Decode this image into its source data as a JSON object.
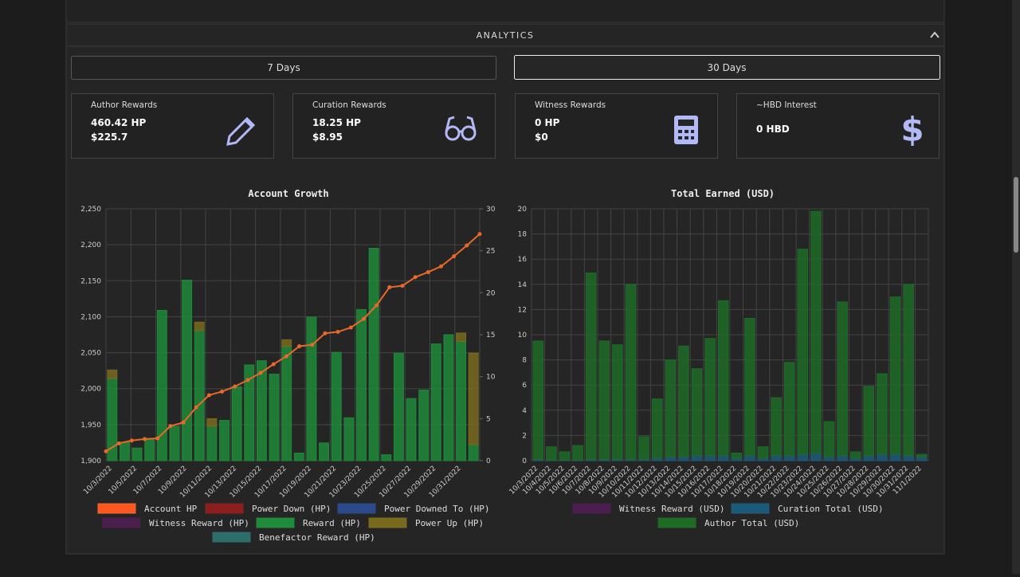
{
  "header": {
    "title": "ANALYTICS"
  },
  "tabs": [
    "7 Days",
    "30 Days"
  ],
  "cards": [
    {
      "label": "Author Rewards",
      "lines": [
        "460.42 HP",
        "$225.7"
      ]
    },
    {
      "label": "Curation Rewards",
      "lines": [
        "18.25 HP",
        "$8.95"
      ]
    },
    {
      "label": "Witness Rewards",
      "lines": [
        "0 HP",
        "$0"
      ]
    },
    {
      "label": "~HBD Interest",
      "lines": [
        "0 HBD"
      ]
    }
  ],
  "chart_data": [
    {
      "type": "bar",
      "title": "Account Growth",
      "categories": [
        "10/3/2022",
        null,
        "10/5/2022",
        null,
        "10/7/2022",
        null,
        "10/9/2022",
        null,
        "10/11/2022",
        null,
        "10/13/2022",
        null,
        "10/15/2022",
        null,
        "10/17/2022",
        null,
        "10/19/2022",
        null,
        "10/21/2022",
        null,
        "10/23/2022",
        null,
        "10/25/2022",
        null,
        "10/27/2022",
        null,
        "10/29/2022",
        null,
        "10/31/2022",
        null
      ],
      "ylim": [
        1900,
        2250
      ],
      "yticks": [
        {
          "value": 1900,
          "label": "1,900"
        },
        {
          "value": 1950,
          "label": "1,950"
        },
        {
          "value": 2000,
          "label": "2,000"
        },
        {
          "value": 2050,
          "label": "2,050"
        },
        {
          "value": 2100,
          "label": "2,100"
        },
        {
          "value": 2150,
          "label": "2,150"
        },
        {
          "value": 2200,
          "label": "2,200"
        },
        {
          "value": 2250,
          "label": "2,250"
        }
      ],
      "y2lim": [
        0,
        30
      ],
      "y2ticks": [
        0,
        5,
        10,
        15,
        20,
        25,
        30
      ],
      "grid": true,
      "series": [
        {
          "name": "Account HP",
          "type": "line",
          "color": "#e8692a",
          "values": [
            1913,
            1924,
            1928,
            1930,
            1931,
            1948,
            1953,
            1974,
            1991,
            1996,
            2003,
            2012,
            2022,
            2034,
            2045,
            2059,
            2061,
            2077,
            2079,
            2085,
            2097,
            2116,
            2141,
            2143,
            2155,
            2162,
            2170,
            2184,
            2199,
            2215
          ]
        },
        {
          "name": "Power Down (HP)",
          "axis": "y2",
          "color": "#8b1e1e",
          "values": [
            0,
            0,
            0,
            0,
            0,
            0,
            0,
            0,
            0,
            0,
            0,
            0,
            0,
            0,
            0,
            0,
            0,
            0,
            0,
            0,
            0,
            0,
            0,
            0,
            0,
            0,
            0,
            0,
            0,
            0
          ]
        },
        {
          "name": "Power Downed To (HP)",
          "axis": "y2",
          "color": "#2c4a8a",
          "values": [
            0,
            0,
            0,
            0,
            0,
            0,
            0,
            0,
            0,
            0,
            0,
            0,
            0,
            0,
            0,
            0,
            0,
            0,
            0,
            0,
            0,
            0,
            0,
            0,
            0,
            0,
            0,
            0,
            0,
            0
          ]
        },
        {
          "name": "Witness Reward (HP)",
          "axis": "y2",
          "color": "#4a1f4f",
          "values": [
            0,
            0,
            0,
            0,
            0,
            0,
            0,
            0,
            0,
            0,
            0,
            0,
            0,
            0,
            0,
            0,
            0,
            0,
            0,
            0,
            0,
            0,
            0,
            0,
            0,
            0,
            0,
            0,
            0,
            0
          ]
        },
        {
          "name": "Reward (HP)",
          "axis": "y2",
          "color": "#1e8a3a",
          "values": [
            9.8,
            2.2,
            1.5,
            2.5,
            17.9,
            4.1,
            21.5,
            15.5,
            4.1,
            4.8,
            8.8,
            11.4,
            11.9,
            10.3,
            13.6,
            0.9,
            17.1,
            2.1,
            12.9,
            5.1,
            18.0,
            25.3,
            0.7,
            12.8,
            7.4,
            8.4,
            13.9,
            15.0,
            14.2,
            1.9
          ]
        },
        {
          "name": "Power Up (HP)",
          "axis": "y2",
          "color": "#7a6a1e",
          "values": [
            1.0,
            0,
            0,
            0,
            0,
            0,
            0,
            1.0,
            0.9,
            0,
            0,
            0,
            0,
            0,
            0.8,
            0,
            0,
            0,
            0,
            0,
            0,
            0,
            0,
            0,
            0,
            0,
            0,
            0,
            1.0,
            10.9
          ]
        },
        {
          "name": "Benefactor Reward (HP)",
          "axis": "y2",
          "color": "#2e6e6a",
          "values": [
            0,
            0,
            0,
            0,
            0,
            0,
            0,
            0,
            0,
            0,
            0,
            0,
            0,
            0,
            0,
            0,
            0,
            0,
            0,
            0,
            0,
            0,
            0,
            0,
            0,
            0,
            0,
            0,
            0,
            0
          ]
        }
      ]
    },
    {
      "type": "bar",
      "title": "Total Earned (USD)",
      "categories": [
        "10/3/2022",
        "10/4/2022",
        "10/5/2022",
        "10/6/2022",
        "10/7/2022",
        "10/8/2022",
        "10/9/2022",
        "10/10/2022",
        "10/11/2022",
        "10/12/2022",
        "10/13/2022",
        "10/14/2022",
        "10/15/2022",
        "10/16/2022",
        "10/17/2022",
        "10/18/2022",
        "10/19/2022",
        "10/20/2022",
        "10/21/2022",
        "10/22/2022",
        "10/23/2022",
        "10/24/2022",
        "10/25/2022",
        "10/26/2022",
        "10/27/2022",
        "10/28/2022",
        "10/29/2022",
        "10/30/2022",
        "10/31/2022",
        "11/1/2022"
      ],
      "ylim": [
        0,
        20
      ],
      "yticks": [
        0,
        2,
        4,
        6,
        8,
        10,
        12,
        14,
        16,
        18,
        20
      ],
      "grid": true,
      "series": [
        {
          "name": "Witness Reward (USD)",
          "color": "#4a1f4f",
          "values": [
            0,
            0,
            0,
            0,
            0,
            0,
            0,
            0,
            0,
            0,
            0,
            0,
            0,
            0,
            0,
            0,
            0,
            0,
            0,
            0,
            0,
            0,
            0,
            0,
            0,
            0,
            0,
            0,
            0,
            0
          ]
        },
        {
          "name": "Curation Total (USD)",
          "color": "#1d5a7a",
          "values": [
            0.1,
            0.05,
            0.05,
            0.05,
            0.1,
            0.1,
            0.1,
            0.1,
            0.1,
            0.2,
            0.3,
            0.3,
            0.4,
            0.4,
            0.4,
            0.2,
            0.4,
            0.2,
            0.4,
            0.4,
            0.5,
            0.6,
            0.3,
            0.4,
            0.2,
            0.4,
            0.5,
            0.5,
            0.4,
            0.3
          ]
        },
        {
          "name": "Author Total (USD)",
          "color": "#1e6b28",
          "values": [
            9.4,
            1.05,
            0.65,
            1.15,
            14.8,
            9.4,
            9.1,
            13.9,
            1.8,
            4.7,
            7.7,
            8.8,
            6.9,
            9.3,
            12.3,
            0.4,
            10.9,
            0.9,
            4.6,
            7.4,
            16.3,
            19.2,
            2.8,
            12.2,
            0.5,
            5.5,
            6.4,
            12.5,
            13.6,
            0.2
          ]
        }
      ]
    }
  ]
}
